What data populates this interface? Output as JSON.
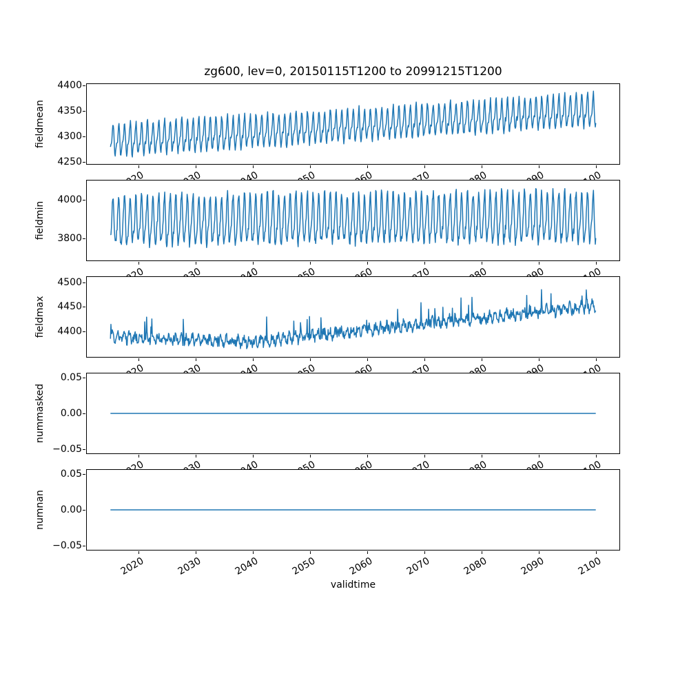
{
  "title": "zg600, lev=0, 20150115T1200 to 20991215T1200",
  "chart_data": {
    "type": "line",
    "title": "zg600, lev=0, 20150115T1200 to 20991215T1200",
    "variable": "zg600",
    "level": "lev=0",
    "time_start": "20150115T1200",
    "time_end": "20991215T1200",
    "xlabel": "validtime",
    "x_ticks": [
      2020,
      2030,
      2040,
      2050,
      2060,
      2070,
      2080,
      2090,
      2100
    ],
    "x_tick_labels": [
      "2020",
      "2030",
      "2040",
      "2050",
      "2060",
      "2070",
      "2080",
      "2090",
      "2100"
    ],
    "xlim": [
      2010.79,
      2104.21
    ],
    "x_start": 2015.042,
    "x_end": 2099.958,
    "samples_per_year": 12,
    "line_color": "#1f77b4",
    "grid": false,
    "legend": "none",
    "subplots": [
      {
        "ylabel": "fieldmean",
        "yticks": [
          4250,
          4300,
          4350,
          4400
        ],
        "ytick_labels": [
          "4250",
          "4300",
          "4350",
          "4400"
        ],
        "ylim": [
          4244,
          4404
        ],
        "summary": {
          "pattern": "dense annual oscillation with steady rising trend",
          "approx_mean_start": 4290,
          "approx_mean_end": 4350,
          "approx_min": 4250,
          "approx_max": 4398
        },
        "gen": {
          "kind": "seasonal",
          "seed": 11,
          "base_start": 4290,
          "base_end": 4350,
          "amp1": 26,
          "phase1": -1.35,
          "amp2": 12,
          "phase2": 0.9,
          "noise": 5,
          "spike_p": 0,
          "spike_min": 0,
          "spike_max": 0
        }
      },
      {
        "ylabel": "fieldmin",
        "yticks": [
          3800,
          4000
        ],
        "ytick_labels": [
          "3800",
          "4000"
        ],
        "ylim": [
          3681,
          4105
        ],
        "summary": {
          "pattern": "large-amplitude annual oscillation, nearly flat trend",
          "approx_mean_start": 3885,
          "approx_mean_end": 3900,
          "approx_min": 3705,
          "approx_max": 4090
        },
        "gen": {
          "kind": "seasonal",
          "seed": 22,
          "base_start": 3885,
          "base_end": 3900,
          "amp1": 118,
          "phase1": -1.35,
          "amp2": 32,
          "phase2": 1.2,
          "noise": 25,
          "spike_p": 0.004,
          "spike_min": 25,
          "spike_max": 55
        }
      },
      {
        "ylabel": "fieldmax",
        "yticks": [
          4400,
          4450,
          4500
        ],
        "ytick_labels": [
          "4400",
          "4450",
          "4500"
        ],
        "ylim": [
          4347,
          4512
        ],
        "summary": {
          "pattern": "noisy series, slight dip until ~2040 then rising, occasional upward spikes",
          "approx_mean_start": 4388,
          "approx_mean_2040": 4379,
          "approx_mean_end": 4450,
          "approx_min": 4360,
          "approx_max": 4505
        },
        "gen": {
          "kind": "trend_noise",
          "seed": 33,
          "base_start": 4388,
          "t_mid": 2040,
          "base_mid": 4379,
          "base_end": 4452,
          "amp1": 7,
          "phase1": -0.8,
          "amp2": 0,
          "phase2": 0,
          "noise": 9,
          "spike_p": 0.035,
          "spike_min": 12,
          "spike_max": 40
        }
      },
      {
        "ylabel": "nummasked",
        "yticks": [
          -0.05,
          0,
          0.05
        ],
        "ytick_labels": [
          "−0.05",
          "0.00",
          "0.05"
        ],
        "ylim": [
          -0.057,
          0.057
        ],
        "summary": {
          "pattern": "constant zero line",
          "value": 0
        },
        "gen": {
          "kind": "constant",
          "value": 0
        }
      },
      {
        "ylabel": "numnan",
        "yticks": [
          -0.05,
          0,
          0.05
        ],
        "ytick_labels": [
          "−0.05",
          "0.00",
          "0.05"
        ],
        "ylim": [
          -0.057,
          0.057
        ],
        "summary": {
          "pattern": "constant zero line",
          "value": 0
        },
        "gen": {
          "kind": "constant",
          "value": 0
        }
      }
    ]
  }
}
